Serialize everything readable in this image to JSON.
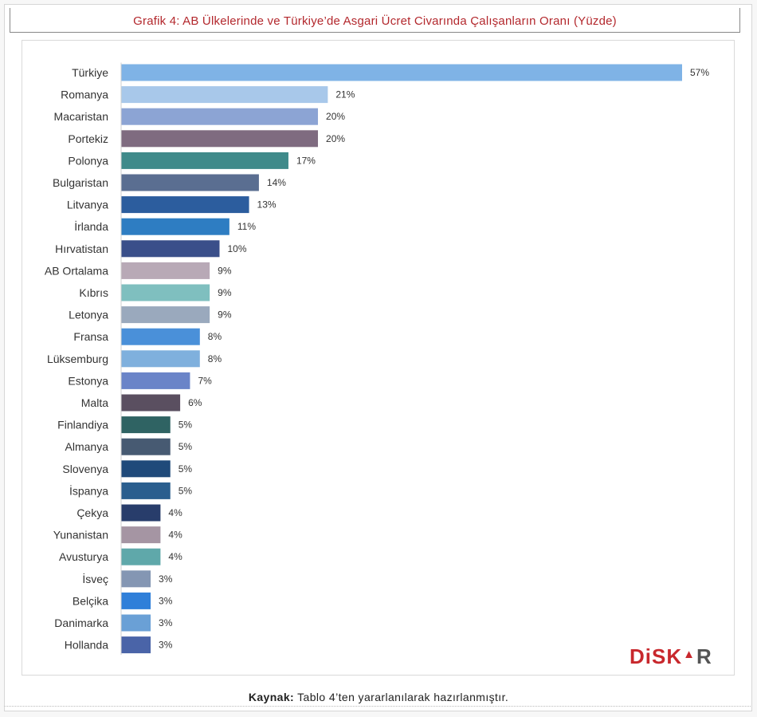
{
  "header": {
    "title": "Grafik 4: AB Ülkelerinde ve Türkiye’de Asgari Ücret Civarında Çalışanların Oranı (Yüzde)"
  },
  "chart_data": {
    "type": "bar",
    "orientation": "horizontal",
    "title": "Grafik 4: AB Ülkelerinde ve Türkiye’de Asgari Ücret Civarında Çalışanların Oranı (Yüzde)",
    "xlabel": "",
    "ylabel": "",
    "value_suffix": "%",
    "xlim": [
      0,
      57
    ],
    "grid": false,
    "categories": [
      "Türkiye",
      "Romanya",
      "Macaristan",
      "Portekiz",
      "Polonya",
      "Bulgaristan",
      "Litvanya",
      "İrlanda",
      "Hırvatistan",
      "AB Ortalama",
      "Kıbrıs",
      "Letonya",
      "Fransa",
      "Lüksemburg",
      "Estonya",
      "Malta",
      "Finlandiya",
      "Almanya",
      "Slovenya",
      "İspanya",
      "Çekya",
      "Yunanistan",
      "Avusturya",
      "İsveç",
      "Belçika",
      "Danimarka",
      "Hollanda"
    ],
    "values": [
      57,
      21,
      20,
      20,
      17,
      14,
      13,
      11,
      10,
      9,
      9,
      9,
      8,
      8,
      7,
      6,
      5,
      5,
      5,
      5,
      4,
      4,
      4,
      3,
      3,
      3,
      3
    ],
    "colors": [
      "#7fb3e6",
      "#a8c8ea",
      "#8ca4d4",
      "#7f6b80",
      "#3f8a8a",
      "#5a6e91",
      "#2c5d9e",
      "#2e7dc2",
      "#3a4f8a",
      "#b8a9b6",
      "#7fbfbf",
      "#9aa9bd",
      "#4a90d9",
      "#7fb0dd",
      "#6a84c8",
      "#5a4f60",
      "#2f6363",
      "#475a72",
      "#1f4a7a",
      "#2a5e8e",
      "#283d6b",
      "#a595a3",
      "#5fa8aa",
      "#8496b3",
      "#2f7fd9",
      "#6aa0d6",
      "#4a64a8"
    ]
  },
  "logo": {
    "part1": "DiSK",
    "part2": "▲",
    "part3": "R"
  },
  "source": {
    "label": "Kaynak:",
    "text": "Tablo 4’ten yararlanılarak hazırlanmıştır."
  }
}
